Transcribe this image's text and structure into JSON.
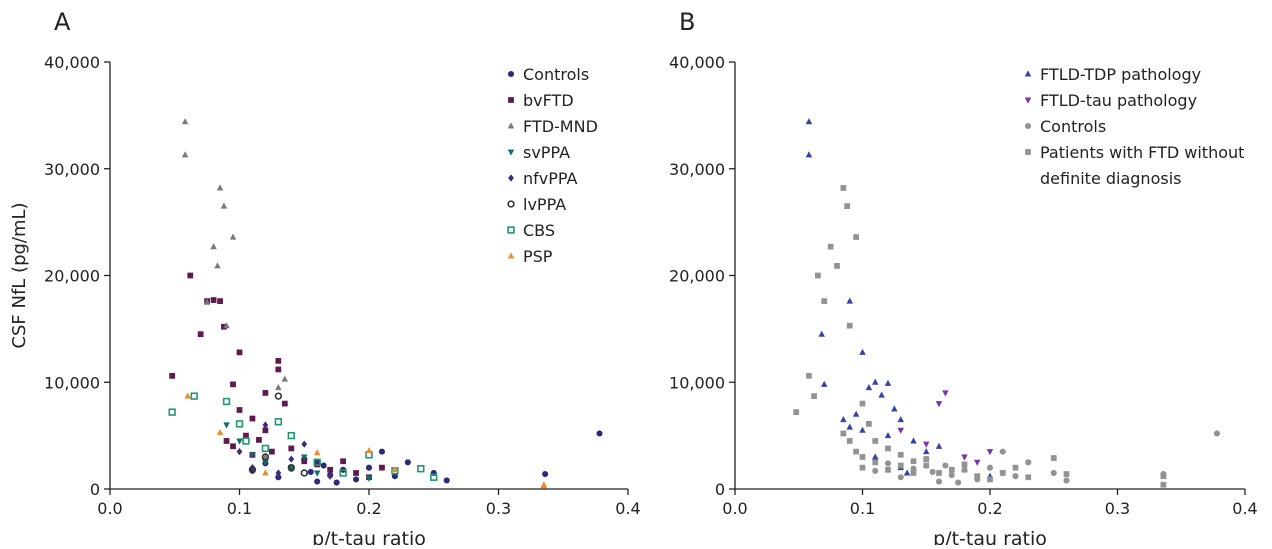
{
  "chart_data": [
    {
      "type": "scatter",
      "panel_label": "A",
      "xlabel": "p/t-tau ratio",
      "ylabel": "CSF NfL (pg/mL)",
      "xlim": [
        0,
        0.4
      ],
      "ylim": [
        0,
        40000
      ],
      "xticks": [
        {
          "value": 0,
          "label": "0.0"
        },
        0.1,
        0.2,
        0.3,
        0.4
      ],
      "yticks": [
        0,
        {
          "value": 10000,
          "label": "10,000"
        },
        {
          "value": 20000,
          "label": "20,000"
        },
        {
          "value": 30000,
          "label": "30,000"
        },
        {
          "value": 40000,
          "label": "40,000"
        }
      ],
      "series": [
        {
          "name": "Controls",
          "color": "#2b2b7e",
          "marker": "circle",
          "x": [
            0.378,
            0.336,
            0.26,
            0.25,
            0.23,
            0.22,
            0.21,
            0.2,
            0.19,
            0.18,
            0.175,
            0.17,
            0.165,
            0.16,
            0.155,
            0.15,
            0.14,
            0.13,
            0.12,
            0.11
          ],
          "y": [
            5200,
            1400,
            800,
            1500,
            2500,
            1200,
            3500,
            2000,
            900,
            1800,
            600,
            1300,
            2200,
            700,
            1600,
            2800,
            1900,
            1100,
            2400,
            1700
          ]
        },
        {
          "name": "bvFTD",
          "color": "#5e1a4e",
          "marker": "square",
          "x": [
            0.062,
            0.048,
            0.07,
            0.075,
            0.08,
            0.085,
            0.088,
            0.09,
            0.095,
            0.1,
            0.105,
            0.11,
            0.115,
            0.12,
            0.125,
            0.13,
            0.135,
            0.14,
            0.15,
            0.16,
            0.17,
            0.18,
            0.19,
            0.2,
            0.21,
            0.095,
            0.1,
            0.11,
            0.12,
            0.13
          ],
          "y": [
            20000,
            10600,
            14500,
            17600,
            17700,
            17600,
            15200,
            4500,
            4000,
            12800,
            5000,
            3200,
            4600,
            9000,
            3500,
            12000,
            8000,
            3800,
            2600,
            2300,
            1800,
            2600,
            1500,
            1100,
            2000,
            9800,
            7400,
            6600,
            5500,
            11200
          ]
        },
        {
          "name": "FTD-MND",
          "color": "#7a7a7a",
          "marker": "triangle",
          "x": [
            0.058,
            0.058,
            0.085,
            0.088,
            0.083,
            0.08,
            0.095,
            0.075,
            0.13,
            0.135,
            0.09,
            0.12
          ],
          "y": [
            34400,
            31300,
            28200,
            26500,
            20900,
            22700,
            23600,
            17500,
            9500,
            10300,
            15300,
            3000
          ]
        },
        {
          "name": "svPPA",
          "color": "#0f6d6d",
          "marker": "triangle-down",
          "x": [
            0.09,
            0.1,
            0.11,
            0.12,
            0.14,
            0.15,
            0.16,
            0.2
          ],
          "y": [
            6000,
            4500,
            3200,
            2500,
            2000,
            3000,
            1500,
            1000
          ]
        },
        {
          "name": "nfvPPA",
          "color": "#3b2b84",
          "marker": "diamond",
          "x": [
            0.1,
            0.11,
            0.12,
            0.13,
            0.15,
            0.17,
            0.14,
            0.16
          ],
          "y": [
            3500,
            2000,
            6000,
            1500,
            4200,
            1200,
            2800,
            2500
          ]
        },
        {
          "name": "lvPPA",
          "color": "#333333",
          "marker": "ring",
          "x": [
            0.13,
            0.12,
            0.14,
            0.15,
            0.16,
            0.11
          ],
          "y": [
            8700,
            3000,
            2000,
            1500,
            2500,
            1800
          ]
        },
        {
          "name": "CBS",
          "color": "#1e9a6c",
          "marker": "open-square",
          "x": [
            0.048,
            0.065,
            0.09,
            0.1,
            0.105,
            0.13,
            0.14,
            0.2,
            0.22,
            0.24,
            0.25,
            0.18,
            0.12,
            0.16
          ],
          "y": [
            7200,
            8700,
            8200,
            6100,
            4500,
            6300,
            5000,
            3200,
            1700,
            1900,
            1100,
            1500,
            3800,
            2500
          ]
        },
        {
          "name": "PSP",
          "color": "#f08a30",
          "marker": "triangle",
          "x": [
            0.06,
            0.085,
            0.12,
            0.16,
            0.2,
            0.335,
            0.335,
            0.22
          ],
          "y": [
            8700,
            5300,
            1500,
            3400,
            3600,
            400,
            300,
            1800
          ]
        }
      ]
    },
    {
      "type": "scatter",
      "panel_label": "B",
      "xlabel": "p/t-tau ratio",
      "xlim": [
        0,
        0.4
      ],
      "ylim": [
        0,
        40000
      ],
      "xticks": [
        {
          "value": 0,
          "label": "0.0"
        },
        0.1,
        0.2,
        0.3,
        0.4
      ],
      "yticks": [
        0,
        {
          "value": 10000,
          "label": "10,000"
        },
        {
          "value": 20000,
          "label": "20,000"
        },
        {
          "value": 30000,
          "label": "30,000"
        },
        {
          "value": 40000,
          "label": "40,000"
        }
      ],
      "series": [
        {
          "name": "FTLD-TDP pathology",
          "color": "#3343a6",
          "marker": "triangle",
          "x": [
            0.058,
            0.058,
            0.068,
            0.07,
            0.09,
            0.1,
            0.105,
            0.11,
            0.115,
            0.12,
            0.125,
            0.13,
            0.085,
            0.09,
            0.095,
            0.1,
            0.12,
            0.14,
            0.15,
            0.16,
            0.18,
            0.2,
            0.11,
            0.13,
            0.135
          ],
          "y": [
            34400,
            31300,
            14500,
            9800,
            17600,
            12800,
            9500,
            10000,
            8800,
            9900,
            7500,
            6500,
            6500,
            5800,
            7000,
            5500,
            5000,
            4500,
            3500,
            4000,
            1800,
            1200,
            3000,
            2000,
            1500
          ]
        },
        {
          "name": "FTLD-tau pathology",
          "color": "#7a32a4",
          "marker": "triangle-down",
          "x": [
            0.13,
            0.16,
            0.165,
            0.18,
            0.19,
            0.2,
            0.15,
            0.21
          ],
          "y": [
            5500,
            8000,
            9000,
            3000,
            2500,
            3500,
            4200,
            1500
          ]
        },
        {
          "name": "Controls",
          "color": "#939393",
          "marker": "circle",
          "x": [
            0.378,
            0.336,
            0.26,
            0.25,
            0.23,
            0.22,
            0.21,
            0.2,
            0.19,
            0.18,
            0.175,
            0.17,
            0.165,
            0.16,
            0.155,
            0.15,
            0.14,
            0.13,
            0.12,
            0.11
          ],
          "y": [
            5200,
            1400,
            800,
            1500,
            2500,
            1200,
            3500,
            2000,
            900,
            1800,
            600,
            1300,
            2200,
            700,
            1600,
            2800,
            1900,
            1100,
            2400,
            1700
          ]
        },
        {
          "name": "Patients with FTD without definite diagnosis",
          "color": "#939393",
          "marker": "square",
          "x": [
            0.048,
            0.058,
            0.062,
            0.065,
            0.07,
            0.075,
            0.08,
            0.085,
            0.088,
            0.09,
            0.095,
            0.1,
            0.105,
            0.11,
            0.12,
            0.13,
            0.14,
            0.15,
            0.16,
            0.17,
            0.18,
            0.19,
            0.2,
            0.21,
            0.22,
            0.23,
            0.25,
            0.26,
            0.336,
            0.336,
            0.1,
            0.11,
            0.12,
            0.13,
            0.14,
            0.15,
            0.09,
            0.085,
            0.095,
            0.1
          ],
          "y": [
            7200,
            10600,
            8700,
            20000,
            17600,
            22700,
            20900,
            28200,
            26500,
            15300,
            23600,
            8000,
            6100,
            4500,
            3800,
            3200,
            2600,
            2200,
            1500,
            1800,
            2300,
            1200,
            900,
            1500,
            2000,
            1100,
            2900,
            1400,
            1200,
            400,
            3000,
            2500,
            1800,
            2200,
            1500,
            2800,
            4500,
            5200,
            3500,
            2000
          ]
        }
      ]
    }
  ]
}
